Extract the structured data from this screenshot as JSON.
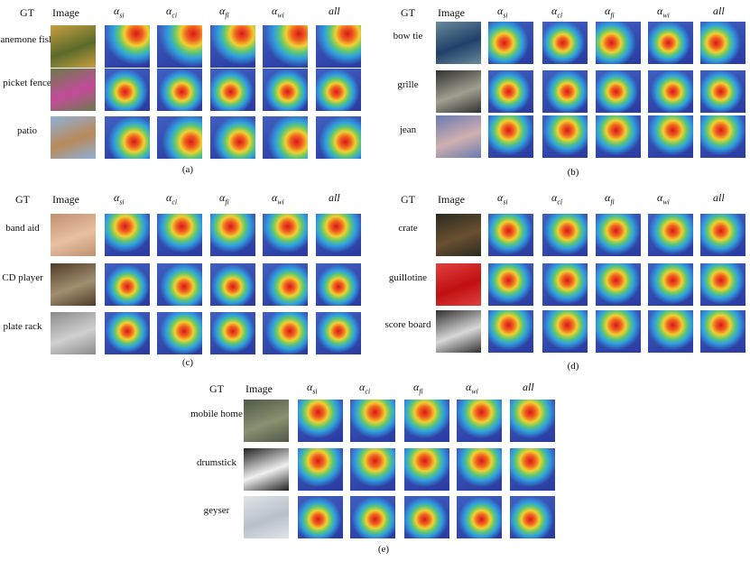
{
  "headers": {
    "gt": "GT",
    "image": "Image",
    "alpha": "α",
    "si": "si",
    "ci": "ci",
    "fi": "fi",
    "wi": "wi",
    "all": "all"
  },
  "panels": [
    {
      "caption": "(a)",
      "rows": [
        "anemone fish",
        "picket fence",
        "patio"
      ]
    },
    {
      "caption": "(b)",
      "rows": [
        "bow tie",
        "grille",
        "jean"
      ]
    },
    {
      "caption": "(c)",
      "rows": [
        "band aid",
        "CD player",
        "plate rack"
      ]
    },
    {
      "caption": "(d)",
      "rows": [
        "crate",
        "guillotine",
        "score board"
      ]
    },
    {
      "caption": "(e)",
      "rows": [
        "mobile home",
        "drumstick",
        "geyser"
      ]
    }
  ]
}
